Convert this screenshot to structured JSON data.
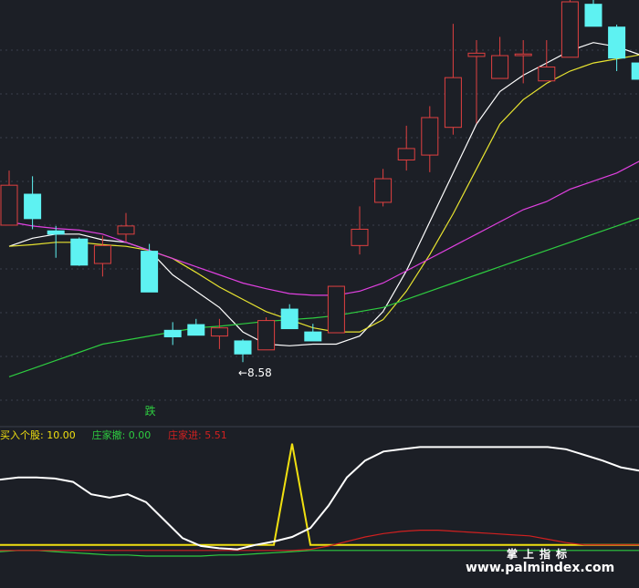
{
  "chart_data": [
    {
      "type": "candlestick",
      "panel": "price",
      "ylim": [
        7.9,
        13.0
      ],
      "candles": [
        {
          "o": 10.26,
          "c": 10.75,
          "h": 10.93,
          "l": 10.26,
          "up": true
        },
        {
          "o": 10.64,
          "c": 10.34,
          "h": 10.86,
          "l": 10.21,
          "up": false
        },
        {
          "o": 10.19,
          "c": 10.15,
          "h": 10.25,
          "l": 9.86,
          "up": false
        },
        {
          "o": 10.09,
          "c": 9.77,
          "h": 10.11,
          "l": 9.76,
          "up": false
        },
        {
          "o": 9.79,
          "c": 10.01,
          "h": 10.13,
          "l": 9.63,
          "up": true
        },
        {
          "o": 10.15,
          "c": 10.25,
          "h": 10.41,
          "l": 10.06,
          "up": true
        },
        {
          "o": 9.94,
          "c": 9.44,
          "h": 10.03,
          "l": 9.44,
          "up": false
        },
        {
          "o": 8.97,
          "c": 8.89,
          "h": 9.07,
          "l": 8.79,
          "up": false
        },
        {
          "o": 9.04,
          "c": 8.91,
          "h": 9.11,
          "l": 8.91,
          "up": false
        },
        {
          "o": 8.9,
          "c": 9.0,
          "h": 9.11,
          "l": 8.74,
          "up": true
        },
        {
          "o": 8.84,
          "c": 8.68,
          "h": 8.86,
          "l": 8.58,
          "up": false
        },
        {
          "o": 8.73,
          "c": 9.09,
          "h": 9.13,
          "l": 8.73,
          "up": true
        },
        {
          "o": 9.23,
          "c": 8.99,
          "h": 9.29,
          "l": 8.99,
          "up": false
        },
        {
          "o": 8.95,
          "c": 8.84,
          "h": 9.05,
          "l": 8.84,
          "up": false
        },
        {
          "o": 8.94,
          "c": 9.51,
          "h": 9.51,
          "l": 8.94,
          "up": true
        },
        {
          "o": 10.01,
          "c": 10.21,
          "h": 10.49,
          "l": 9.9,
          "up": true
        },
        {
          "o": 10.54,
          "c": 10.83,
          "h": 10.95,
          "l": 10.49,
          "up": true
        },
        {
          "o": 11.06,
          "c": 11.2,
          "h": 11.48,
          "l": 10.93,
          "up": true
        },
        {
          "o": 11.12,
          "c": 11.58,
          "h": 11.72,
          "l": 10.91,
          "up": true
        },
        {
          "o": 11.46,
          "c": 12.07,
          "h": 12.73,
          "l": 11.37,
          "up": true
        },
        {
          "o": 12.33,
          "c": 12.37,
          "h": 12.53,
          "l": 11.51,
          "up": true
        },
        {
          "o": 12.06,
          "c": 12.34,
          "h": 12.57,
          "l": 12.06,
          "up": true
        },
        {
          "o": 12.34,
          "c": 12.36,
          "h": 12.53,
          "l": 12.0,
          "up": true
        },
        {
          "o": 12.03,
          "c": 12.2,
          "h": 12.53,
          "l": 12.03,
          "up": true
        },
        {
          "o": 12.32,
          "c": 13.0,
          "h": 13.21,
          "l": 12.32,
          "up": true
        },
        {
          "o": 12.97,
          "c": 12.7,
          "h": 13.21,
          "l": 12.7,
          "up": false
        },
        {
          "o": 12.69,
          "c": 12.31,
          "h": 12.72,
          "l": 12.15,
          "up": false
        },
        {
          "o": 12.25,
          "c": 12.05,
          "h": 12.31,
          "l": 11.91,
          "up": false
        }
      ],
      "ma": [
        {
          "color": "#ffffff",
          "values": [
            10.0,
            10.1,
            10.15,
            10.15,
            10.08,
            10.05,
            9.95,
            9.65,
            9.45,
            9.25,
            8.95,
            8.8,
            8.78,
            8.8,
            8.8,
            8.9,
            9.2,
            9.7,
            10.3,
            10.9,
            11.5,
            11.9,
            12.1,
            12.25,
            12.4,
            12.5,
            12.45,
            12.35
          ]
        },
        {
          "color": "#e8e430",
          "values": [
            10.0,
            10.02,
            10.05,
            10.05,
            10.02,
            10.0,
            9.95,
            9.85,
            9.68,
            9.5,
            9.35,
            9.2,
            9.1,
            9.0,
            8.95,
            8.95,
            9.1,
            9.45,
            9.9,
            10.4,
            10.95,
            11.5,
            11.8,
            12.0,
            12.15,
            12.25,
            12.3,
            12.35
          ]
        },
        {
          "color": "#e040e0",
          "values": [
            10.3,
            10.25,
            10.22,
            10.2,
            10.15,
            10.05,
            9.95,
            9.85,
            9.75,
            9.65,
            9.55,
            9.48,
            9.42,
            9.4,
            9.4,
            9.45,
            9.55,
            9.7,
            9.85,
            10.0,
            10.15,
            10.3,
            10.45,
            10.55,
            10.7,
            10.8,
            10.9,
            11.05
          ]
        },
        {
          "color": "#2ecc40",
          "values": [
            8.4,
            8.5,
            8.6,
            8.7,
            8.8,
            8.85,
            8.9,
            8.95,
            9.0,
            9.02,
            9.05,
            9.08,
            9.1,
            9.12,
            9.15,
            9.2,
            9.25,
            9.35,
            9.45,
            9.55,
            9.65,
            9.75,
            9.85,
            9.95,
            10.05,
            10.15,
            10.25,
            10.35
          ]
        }
      ],
      "annotations": [
        {
          "text": "←8.58",
          "x_index": 10,
          "y": 8.45,
          "color": "#ffffff"
        },
        {
          "text": "跌",
          "x_index": 6,
          "y": 7.98,
          "color": "#2ecc40"
        }
      ]
    },
    {
      "type": "line",
      "panel": "indicator",
      "ylim": [
        0,
        12
      ],
      "series": [
        {
          "name": "买入个股",
          "color": "#f0e010",
          "values": [
            1,
            1,
            1,
            1,
            1,
            1,
            1,
            1,
            1,
            1,
            1,
            1,
            1,
            1,
            1,
            1,
            10.0,
            1,
            1,
            1,
            1,
            1,
            1,
            1,
            1,
            1,
            1,
            1,
            1,
            1,
            1,
            1,
            1,
            1,
            1,
            1
          ]
        },
        {
          "name": "庄家撤",
          "color": "#2ecc40",
          "values": [
            0.4,
            0.5,
            0.5,
            0.4,
            0.3,
            0.2,
            0.1,
            0.1,
            0.0,
            0.0,
            0.0,
            0.0,
            0.1,
            0.1,
            0.2,
            0.3,
            0.4,
            0.5,
            0.5,
            0.5,
            0.5,
            0.5,
            0.5,
            0.5,
            0.5,
            0.5,
            0.5,
            0.5,
            0.5,
            0.5,
            0.5,
            0.5,
            0.5,
            0.5,
            0.5,
            0.5
          ]
        },
        {
          "name": "庄家进",
          "color": "#d02020",
          "values": [
            0.5,
            0.5,
            0.5,
            0.5,
            0.5,
            0.5,
            0.5,
            0.5,
            0.5,
            0.5,
            0.5,
            0.5,
            0.5,
            0.5,
            0.5,
            0.5,
            0.5,
            0.6,
            0.9,
            1.3,
            1.7,
            2.0,
            2.2,
            2.3,
            2.3,
            2.2,
            2.1,
            2.0,
            1.9,
            1.8,
            1.5,
            1.2,
            1.0,
            1.0,
            1.0,
            1.0
          ]
        },
        {
          "name": "",
          "color": "#ffffff",
          "values": [
            6.8,
            7.0,
            7.0,
            6.9,
            6.6,
            5.5,
            5.2,
            5.5,
            4.8,
            3.2,
            1.6,
            0.9,
            0.7,
            0.6,
            1.0,
            1.3,
            1.7,
            2.5,
            4.5,
            7.0,
            8.5,
            9.3,
            9.5,
            9.7,
            9.7,
            9.7,
            9.7,
            9.7,
            9.7,
            9.7,
            9.7,
            9.5,
            9.0,
            8.5,
            7.9,
            7.6
          ]
        }
      ],
      "legend": [
        {
          "label": "买入个股:",
          "value": "10.00",
          "color": "#f0e010"
        },
        {
          "label": "庄家撤:",
          "value": "0.00",
          "color": "#2ecc40"
        },
        {
          "label": "庄家进:",
          "value": "5.51",
          "color": "#d02020"
        }
      ]
    }
  ],
  "watermark": {
    "line1": "掌上指标",
    "line2": "www.palmindex.com"
  },
  "colors": {
    "up": "#e04040",
    "down": "#5ef2f2",
    "grid": "#3a3f4c",
    "bg": "#1c1f26"
  }
}
